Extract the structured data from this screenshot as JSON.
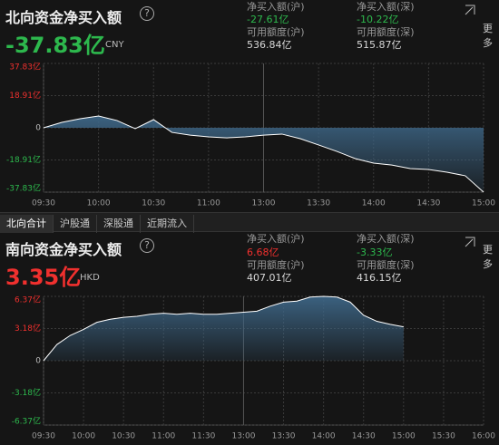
{
  "north": {
    "title": "北向资金净买入额",
    "value": "-37.83亿",
    "color": "#2db84d",
    "unit": "CNY",
    "more": "更多",
    "stats": [
      {
        "label": "净买入额(沪)",
        "value": "-27.61亿",
        "color": "#2db84d"
      },
      {
        "label": "净买入额(深)",
        "value": "-10.22亿",
        "color": "#2db84d"
      },
      {
        "label": "可用额度(沪)",
        "value": "536.84亿",
        "color": "#d8d8d8"
      },
      {
        "label": "可用额度(深)",
        "value": "515.87亿",
        "color": "#d8d8d8"
      }
    ]
  },
  "tabs": [
    "北向合计",
    "沪股通",
    "深股通",
    "近期流入"
  ],
  "south": {
    "title": "南向资金净买入额",
    "value": "3.35亿",
    "color": "#f0302e",
    "unit": "HKD",
    "more": "更多",
    "stats": [
      {
        "label": "净买入额(沪)",
        "value": "6.68亿",
        "color": "#f0302e"
      },
      {
        "label": "净买入额(深)",
        "value": "-3.33亿",
        "color": "#2db84d"
      },
      {
        "label": "可用额度(沪)",
        "value": "407.01亿",
        "color": "#d8d8d8"
      },
      {
        "label": "可用额度(深)",
        "value": "416.15亿",
        "color": "#d8d8d8"
      }
    ]
  },
  "chart_data": [
    {
      "type": "area",
      "color": "#ffffff",
      "fill": "#3d6585",
      "up_color": "#f0302e",
      "down_color": "#2db84d",
      "x": [
        "09:30",
        "09:40",
        "09:50",
        "10:00",
        "10:10",
        "10:20",
        "10:30",
        "10:40",
        "10:50",
        "11:00",
        "11:10",
        "11:20",
        "11:30",
        "13:10",
        "13:20",
        "13:30",
        "13:40",
        "13:50",
        "14:00",
        "14:10",
        "14:20",
        "14:30",
        "14:40",
        "14:50",
        "15:00"
      ],
      "values": [
        0,
        3.2,
        5.3,
        6.9,
        4.3,
        -0.5,
        4.8,
        -2.7,
        -4.3,
        -5.3,
        -5.9,
        -5.3,
        -4.3,
        -3.7,
        -6.4,
        -10.1,
        -13.9,
        -18.1,
        -20.8,
        -21.9,
        -24.0,
        -24.5,
        -26.1,
        -28.2,
        -37.83
      ],
      "ylim": [
        -37.83,
        37.83
      ],
      "yticks": [
        {
          "value": 37.83,
          "label": "37.83亿"
        },
        {
          "value": 18.91,
          "label": "18.91亿"
        },
        0,
        {
          "value": -18.91,
          "label": "-18.91亿"
        },
        {
          "value": -37.83,
          "label": "-37.83亿"
        }
      ],
      "xticks": [
        "09:30",
        "10:00",
        "10:30",
        "11:00",
        {
          "value": "11:30",
          "label": "13:00"
        },
        "13:30",
        "14:00",
        "14:30",
        "15:00"
      ],
      "grid": true
    },
    {
      "type": "area",
      "color": "#ffffff",
      "fill": "#3d6585",
      "up_color": "#f0302e",
      "down_color": "#2db84d",
      "x": [
        "09:30",
        "09:40",
        "09:50",
        "10:00",
        "10:10",
        "10:20",
        "10:30",
        "10:40",
        "10:50",
        "11:00",
        "11:10",
        "11:20",
        "11:30",
        "11:40",
        "11:50",
        "12:00",
        "13:10",
        "13:20",
        "13:30",
        "13:40",
        "13:50",
        "14:00",
        "14:10",
        "14:20",
        "14:30",
        "14:40",
        "14:50",
        "15:00",
        "15:10",
        "15:20",
        "15:30",
        "15:40",
        "15:50",
        "16:00"
      ],
      "values": [
        0,
        1.6,
        2.5,
        3.1,
        3.8,
        4.1,
        4.3,
        4.4,
        4.6,
        4.7,
        4.6,
        4.7,
        4.6,
        4.6,
        4.7,
        4.8,
        4.9,
        5.4,
        5.8,
        5.9,
        6.3,
        6.37,
        6.3,
        5.8,
        4.5,
        3.9,
        3.6,
        3.35,
        null,
        null,
        null,
        null,
        null,
        null
      ],
      "ylim": [
        -6.37,
        6.37
      ],
      "yticks": [
        {
          "value": 6.37,
          "label": "6.37亿"
        },
        {
          "value": 3.18,
          "label": "3.18亿"
        },
        0,
        {
          "value": -3.18,
          "label": "-3.18亿"
        },
        {
          "value": -6.37,
          "label": "-6.37亿"
        }
      ],
      "xticks": [
        "09:30",
        "10:00",
        "10:30",
        "11:00",
        "11:30",
        {
          "value": "12:00",
          "label": "13:00"
        },
        "13:30",
        "14:00",
        "14:30",
        "15:00",
        "15:30",
        "16:00"
      ],
      "grid": true
    }
  ]
}
